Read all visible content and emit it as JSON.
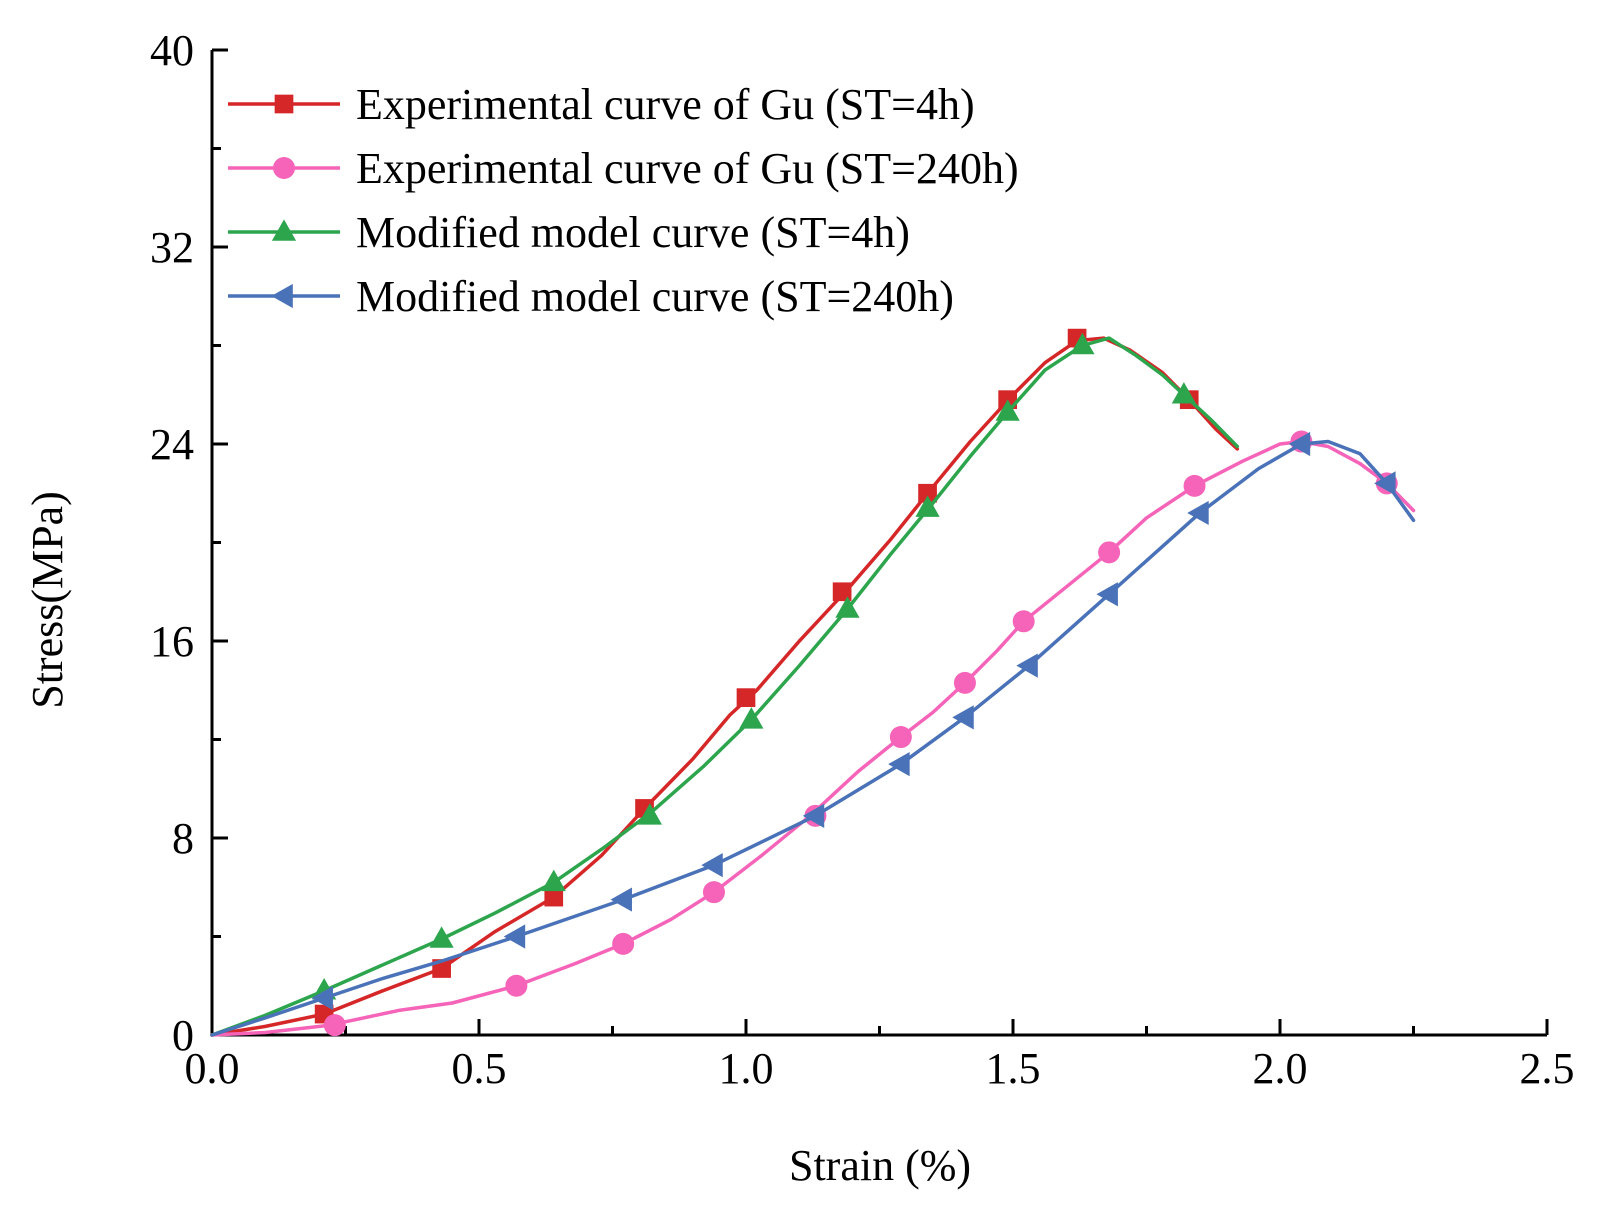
{
  "chart_data": {
    "type": "line",
    "title": "",
    "xlabel": "Strain (%)",
    "ylabel": "Stress(MPa)",
    "xlim": [
      0,
      2.5
    ],
    "ylim": [
      0,
      40
    ],
    "xticks": [
      0.0,
      0.5,
      1.0,
      1.5,
      2.0,
      2.5
    ],
    "xtick_labels": [
      "0.0",
      "0.5",
      "1.0",
      "1.5",
      "2.0",
      "2.5"
    ],
    "yticks": [
      0,
      8,
      16,
      24,
      32,
      40
    ],
    "ytick_labels": [
      "0",
      "8",
      "16",
      "24",
      "32",
      "40"
    ],
    "grid": false,
    "legend_position": "top-left",
    "series": [
      {
        "name": "Experimental curve of Gu (ST=4h)",
        "color": "#d62728",
        "marker": "square",
        "x": [
          0.0,
          0.1,
          0.21,
          0.32,
          0.43,
          0.53,
          0.64,
          0.73,
          0.81,
          0.9,
          0.97,
          1.02,
          1.1,
          1.19,
          1.27,
          1.34,
          1.42,
          1.5,
          1.56,
          1.62,
          1.67,
          1.72,
          1.78,
          1.83,
          1.88,
          1.92
        ],
        "y": [
          0.0,
          0.35,
          0.85,
          1.8,
          2.7,
          4.2,
          5.6,
          7.3,
          9.2,
          11.2,
          13.0,
          14.0,
          16.0,
          18.1,
          20.1,
          22.0,
          24.1,
          26.0,
          27.3,
          28.2,
          28.3,
          27.8,
          26.9,
          25.8,
          24.6,
          23.8
        ],
        "marker_x": [
          0.21,
          0.43,
          0.64,
          0.81,
          1.0,
          1.18,
          1.34,
          1.49,
          1.62,
          1.83
        ],
        "marker_y": [
          0.85,
          2.7,
          5.6,
          9.2,
          13.7,
          18.0,
          22.0,
          25.8,
          28.3,
          25.8
        ]
      },
      {
        "name": "Experimental curve of Gu (ST=240h)",
        "color": "#f564b9",
        "marker": "circle",
        "x": [
          0.0,
          0.1,
          0.22,
          0.35,
          0.45,
          0.57,
          0.68,
          0.77,
          0.86,
          0.94,
          1.03,
          1.12,
          1.21,
          1.29,
          1.35,
          1.41,
          1.47,
          1.52,
          1.6,
          1.68,
          1.75,
          1.84,
          1.93,
          2.0,
          2.04,
          2.09,
          2.15,
          2.2,
          2.25
        ],
        "y": [
          0.0,
          0.1,
          0.4,
          1.0,
          1.3,
          2.0,
          2.9,
          3.7,
          4.7,
          5.8,
          7.3,
          8.9,
          10.7,
          12.1,
          13.1,
          14.3,
          15.6,
          16.8,
          18.2,
          19.6,
          21.0,
          22.3,
          23.3,
          24.0,
          24.1,
          23.9,
          23.2,
          22.4,
          21.3
        ],
        "marker_x": [
          0.23,
          0.57,
          0.77,
          0.94,
          1.13,
          1.29,
          1.41,
          1.52,
          1.68,
          1.84,
          2.04,
          2.2
        ],
        "marker_y": [
          0.4,
          2.0,
          3.7,
          5.8,
          8.9,
          12.1,
          14.3,
          16.8,
          19.6,
          22.3,
          24.1,
          22.4
        ]
      },
      {
        "name": "Modified model curve (ST=4h)",
        "color": "#2ca54d",
        "marker": "triangle-up",
        "x": [
          0.0,
          0.1,
          0.21,
          0.32,
          0.43,
          0.53,
          0.64,
          0.73,
          0.82,
          0.92,
          1.01,
          1.1,
          1.19,
          1.27,
          1.35,
          1.42,
          1.49,
          1.56,
          1.63,
          1.68,
          1.73,
          1.78,
          1.82,
          1.87,
          1.92
        ],
        "y": [
          0.0,
          0.8,
          1.8,
          2.85,
          3.9,
          4.95,
          6.2,
          7.55,
          9.0,
          10.9,
          12.8,
          15.0,
          17.3,
          19.5,
          21.6,
          23.5,
          25.3,
          27.0,
          28.0,
          28.3,
          27.6,
          26.8,
          26.0,
          25.0,
          23.9
        ],
        "marker_x": [
          0.21,
          0.43,
          0.64,
          0.82,
          1.01,
          1.19,
          1.34,
          1.49,
          1.63,
          1.82
        ],
        "marker_y": [
          1.8,
          3.9,
          6.2,
          8.9,
          12.8,
          17.3,
          21.4,
          25.3,
          28.0,
          26.0
        ]
      },
      {
        "name": "Modified model curve (ST=240h)",
        "color": "#4a72b8",
        "marker": "triangle-left",
        "x": [
          0.0,
          0.1,
          0.21,
          0.32,
          0.43,
          0.57,
          0.77,
          0.94,
          1.13,
          1.29,
          1.41,
          1.53,
          1.68,
          1.85,
          1.96,
          2.04,
          2.09,
          2.15,
          2.2,
          2.25
        ],
        "y": [
          0.0,
          0.7,
          1.5,
          2.3,
          3.0,
          4.0,
          5.5,
          6.9,
          8.9,
          11.0,
          12.9,
          15.0,
          17.9,
          21.2,
          23.0,
          24.0,
          24.1,
          23.6,
          22.4,
          20.9
        ],
        "marker_x": [
          0.21,
          0.57,
          0.77,
          0.94,
          1.13,
          1.29,
          1.41,
          1.53,
          1.68,
          1.85,
          2.04,
          2.2
        ],
        "marker_y": [
          1.5,
          4.0,
          5.5,
          6.9,
          8.9,
          11.0,
          12.9,
          15.0,
          17.9,
          21.2,
          24.0,
          22.4
        ]
      }
    ]
  }
}
